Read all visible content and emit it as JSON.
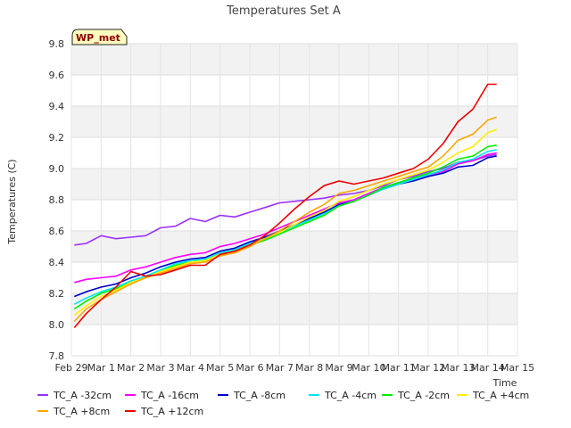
{
  "chart_data": {
    "type": "line",
    "title": "Temperatures Set A",
    "xlabel": "Time",
    "ylabel": "Temperatures (C)",
    "badge": "WP_met",
    "ylim": [
      7.8,
      9.8
    ],
    "yticks": [
      "7.8",
      "8.0",
      "8.2",
      "8.4",
      "8.6",
      "8.8",
      "9.0",
      "9.2",
      "9.4",
      "9.6",
      "9.8"
    ],
    "xlim": [
      0,
      15
    ],
    "xticks": [
      "Feb 29",
      "Mar 1",
      "Mar 2",
      "Mar 3",
      "Mar 4",
      "Mar 5",
      "Mar 6",
      "Mar 7",
      "Mar 8",
      "Mar 9",
      "Mar 10",
      "Mar 11",
      "Mar 12",
      "Mar 13",
      "Mar 14",
      "Mar 15"
    ],
    "grid": true,
    "legend_position": "bottom",
    "x_days": [
      0.1,
      0.5,
      1.0,
      1.5,
      2.0,
      2.5,
      3.0,
      3.5,
      4.0,
      4.5,
      5.0,
      5.5,
      6.0,
      6.5,
      7.0,
      7.5,
      8.0,
      8.5,
      9.0,
      9.5,
      10.0,
      10.5,
      11.0,
      11.5,
      12.0,
      12.5,
      13.0,
      13.5,
      14.0,
      14.3
    ],
    "series": [
      {
        "name": "TC_A -32cm",
        "color": "#9b30ff",
        "values": [
          8.51,
          8.52,
          8.57,
          8.55,
          8.56,
          8.57,
          8.62,
          8.63,
          8.68,
          8.66,
          8.7,
          8.69,
          8.72,
          8.75,
          8.78,
          8.79,
          8.8,
          8.81,
          8.83,
          8.84,
          8.86,
          8.89,
          8.93,
          8.95,
          8.98,
          9.0,
          9.04,
          9.05,
          9.08,
          9.09
        ]
      },
      {
        "name": "TC_A -16cm",
        "color": "#ff00ff",
        "values": [
          8.27,
          8.29,
          8.3,
          8.31,
          8.35,
          8.37,
          8.4,
          8.43,
          8.45,
          8.46,
          8.5,
          8.52,
          8.55,
          8.58,
          8.62,
          8.66,
          8.7,
          8.74,
          8.78,
          8.8,
          8.84,
          8.88,
          8.91,
          8.93,
          8.96,
          8.98,
          9.03,
          9.05,
          9.09,
          9.1
        ]
      },
      {
        "name": "TC_A -8cm",
        "color": "#0000cd",
        "values": [
          8.18,
          8.21,
          8.24,
          8.26,
          8.3,
          8.33,
          8.37,
          8.4,
          8.42,
          8.43,
          8.47,
          8.49,
          8.53,
          8.56,
          8.6,
          8.64,
          8.68,
          8.72,
          8.77,
          8.79,
          8.83,
          8.87,
          8.9,
          8.92,
          8.95,
          8.97,
          9.01,
          9.02,
          9.07,
          9.08
        ]
      },
      {
        "name": "TC_A -4cm",
        "color": "#00e5ee",
        "values": [
          8.13,
          8.17,
          8.21,
          8.24,
          8.28,
          8.31,
          8.35,
          8.39,
          8.41,
          8.42,
          8.46,
          8.48,
          8.52,
          8.55,
          8.59,
          8.63,
          8.67,
          8.71,
          8.76,
          8.79,
          8.83,
          8.87,
          8.9,
          8.93,
          8.96,
          8.99,
          9.04,
          9.06,
          9.11,
          9.12
        ]
      },
      {
        "name": "TC_A -2cm",
        "color": "#00ee00",
        "values": [
          8.1,
          8.15,
          8.2,
          8.23,
          8.27,
          8.3,
          8.34,
          8.38,
          8.4,
          8.41,
          8.45,
          8.47,
          8.51,
          8.54,
          8.58,
          8.62,
          8.66,
          8.7,
          8.76,
          8.79,
          8.83,
          8.88,
          8.91,
          8.94,
          8.97,
          9.01,
          9.06,
          9.08,
          9.14,
          9.15
        ]
      },
      {
        "name": "TC_A +4cm",
        "color": "#ffee00",
        "values": [
          8.06,
          8.12,
          8.18,
          8.22,
          8.27,
          8.3,
          8.34,
          8.37,
          8.4,
          8.41,
          8.45,
          8.47,
          8.51,
          8.55,
          8.59,
          8.64,
          8.69,
          8.73,
          8.79,
          8.82,
          8.86,
          8.9,
          8.93,
          8.96,
          8.99,
          9.04,
          9.1,
          9.14,
          9.23,
          9.25
        ]
      },
      {
        "name": "TC_A +8cm",
        "color": "#ffa500",
        "values": [
          8.02,
          8.1,
          8.16,
          8.21,
          8.26,
          8.3,
          8.33,
          8.36,
          8.39,
          8.4,
          8.44,
          8.46,
          8.5,
          8.55,
          8.6,
          8.66,
          8.72,
          8.77,
          8.84,
          8.86,
          8.89,
          8.92,
          8.95,
          8.98,
          9.01,
          9.08,
          9.18,
          9.22,
          9.31,
          9.33
        ]
      },
      {
        "name": "TC_A +12cm",
        "color": "#ee0000",
        "values": [
          7.98,
          8.07,
          8.16,
          8.24,
          8.34,
          8.31,
          8.32,
          8.35,
          8.38,
          8.38,
          8.45,
          8.47,
          8.51,
          8.57,
          8.65,
          8.74,
          8.82,
          8.89,
          8.92,
          8.9,
          8.92,
          8.94,
          8.97,
          9.0,
          9.06,
          9.16,
          9.3,
          9.38,
          9.54,
          9.54
        ]
      }
    ]
  }
}
